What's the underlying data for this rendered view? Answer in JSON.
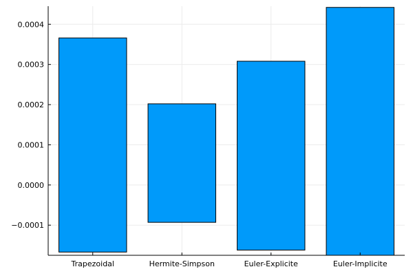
{
  "chart_data": {
    "type": "bar",
    "title": "",
    "xlabel": "",
    "ylabel": "",
    "categories": [
      "Trapezoidal",
      "Hermite-Simpson",
      "Euler-Explicite",
      "Euler-Implicite"
    ],
    "bars": [
      {
        "category": "Trapezoidal",
        "low": -0.000167,
        "high": 0.000366
      },
      {
        "category": "Hermite-Simpson",
        "low": -9.3e-05,
        "high": 0.000202
      },
      {
        "category": "Euler-Explicite",
        "low": -0.000162,
        "high": 0.000308
      },
      {
        "category": "Euler-Implicite",
        "low": -0.000175,
        "high": 0.000442
      }
    ],
    "ylim": [
      -0.000175,
      0.000445
    ],
    "y_ticks": [
      -0.0001,
      0.0,
      0.0001,
      0.0002,
      0.0003,
      0.0004
    ],
    "y_tick_labels": [
      "−0.0001",
      "0.0000",
      "0.0001",
      "0.0002",
      "0.0003",
      "0.0004"
    ],
    "grid": true,
    "legend": "none",
    "colors": {
      "bar_fill": "#009AFA",
      "bar_stroke": "#000000",
      "grid": "#EBEBEB",
      "axis": "#000000"
    }
  }
}
